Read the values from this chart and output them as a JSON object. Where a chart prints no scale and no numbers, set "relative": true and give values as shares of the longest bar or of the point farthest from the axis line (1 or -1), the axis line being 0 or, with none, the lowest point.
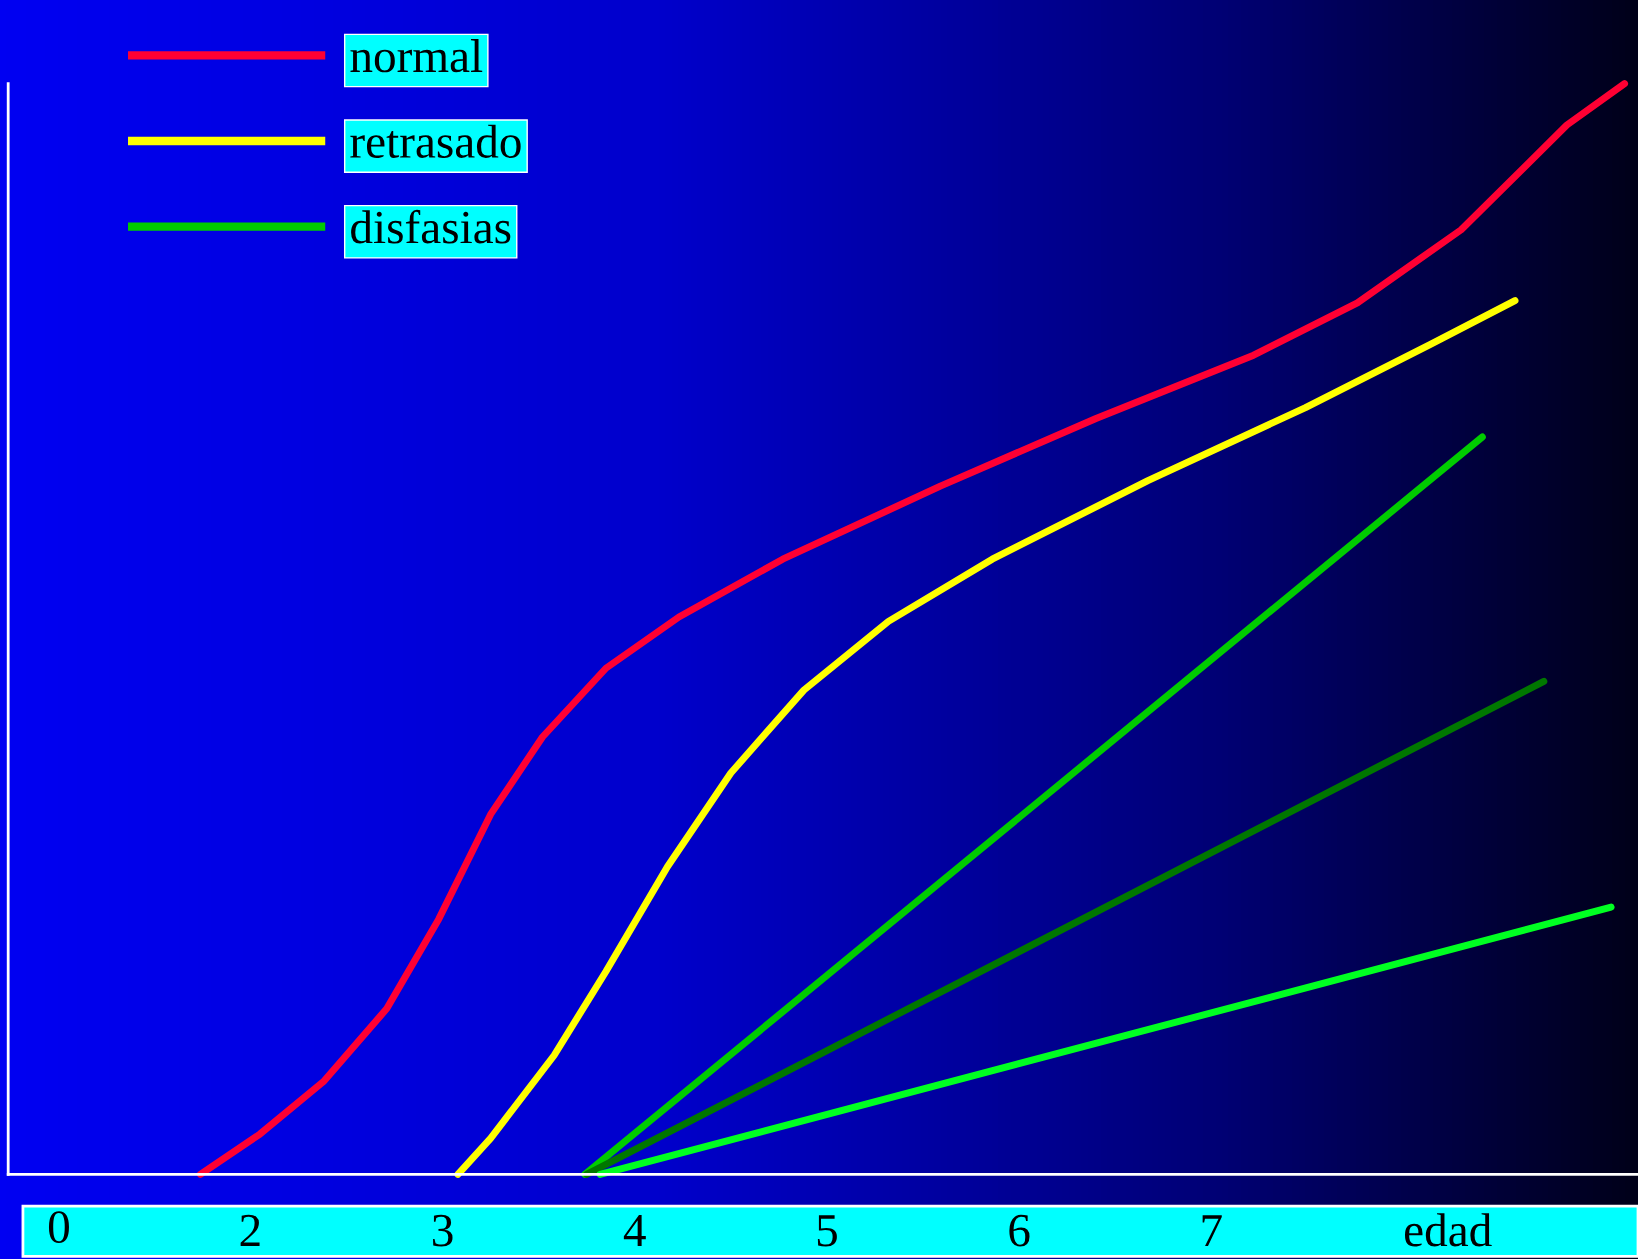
{
  "chart_data": {
    "type": "line",
    "relative": true,
    "legend": "top left",
    "grid": false,
    "marker": "none",
    "line_style": "solid",
    "xlim": [
      0.74,
      9.22
    ],
    "annotations": [
      "0"
    ],
    "xticks": [
      2,
      3,
      4,
      5,
      6,
      7,
      {
        "value": 8.23,
        "label": "edad"
      }
    ],
    "series": [
      {
        "name": "normal",
        "color": "#ff0033",
        "x": [
          1.74,
          2.05,
          2.38,
          2.71,
          2.98,
          3.25,
          3.52,
          3.85,
          4.23,
          4.77,
          5.59,
          6.4,
          7.22,
          7.76,
          8.3,
          8.85,
          9.15
        ],
        "values": [
          0,
          0.037,
          0.085,
          0.152,
          0.234,
          0.33,
          0.401,
          0.464,
          0.511,
          0.564,
          0.631,
          0.693,
          0.751,
          0.799,
          0.866,
          0.962,
          1.0
        ]
      },
      {
        "name": "retrasado",
        "color": "#ffff00",
        "x": [
          3.08,
          3.25,
          3.58,
          3.85,
          4.17,
          4.5,
          4.88,
          5.32,
          5.86,
          6.67,
          7.49,
          8.14,
          8.58
        ],
        "values": [
          0,
          0.033,
          0.109,
          0.186,
          0.282,
          0.368,
          0.444,
          0.507,
          0.564,
          0.636,
          0.703,
          0.761,
          0.801
        ]
      },
      {
        "name": "disfasias",
        "color": "#00cc00",
        "x": [
          3.74,
          8.41
        ],
        "values": [
          0,
          0.676
        ]
      },
      {
        "color": "#007700",
        "x": [
          3.75,
          8.73
        ],
        "values": [
          0,
          0.452
        ]
      },
      {
        "color": "#00ff22",
        "x": [
          3.82,
          9.08
        ],
        "values": [
          0,
          0.245
        ]
      }
    ]
  }
}
